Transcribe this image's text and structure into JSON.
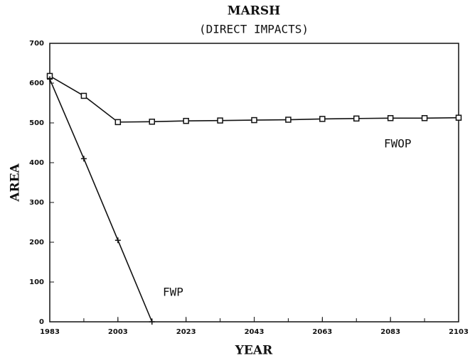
{
  "chart_data": {
    "type": "line",
    "title": "MARSH",
    "subtitle": "(DIRECT IMPACTS)",
    "xlabel": "YEAR",
    "ylabel": "AREA",
    "x": [
      1983,
      1993,
      2003,
      2013,
      2023,
      2033,
      2043,
      2053,
      2063,
      2073,
      2083,
      2093,
      2103
    ],
    "series": [
      {
        "name": "FWOP",
        "color": "#111111",
        "marker": "square",
        "values": [
          618,
          568,
          502,
          503,
          505,
          506,
          507,
          508,
          510,
          511,
          512,
          512,
          513
        ]
      },
      {
        "name": "FWP",
        "color": "#111111",
        "marker": "plus",
        "values": [
          610,
          410,
          205,
          0,
          null,
          null,
          null,
          null,
          null,
          null,
          null,
          null,
          null
        ]
      }
    ],
    "xlim": [
      1983,
      2103
    ],
    "xticks": [
      1983,
      2003,
      2023,
      2043,
      2063,
      2083,
      2103
    ],
    "ylim": [
      0,
      700
    ],
    "yticks": [
      0,
      100,
      200,
      300,
      400,
      500,
      600,
      700
    ]
  }
}
